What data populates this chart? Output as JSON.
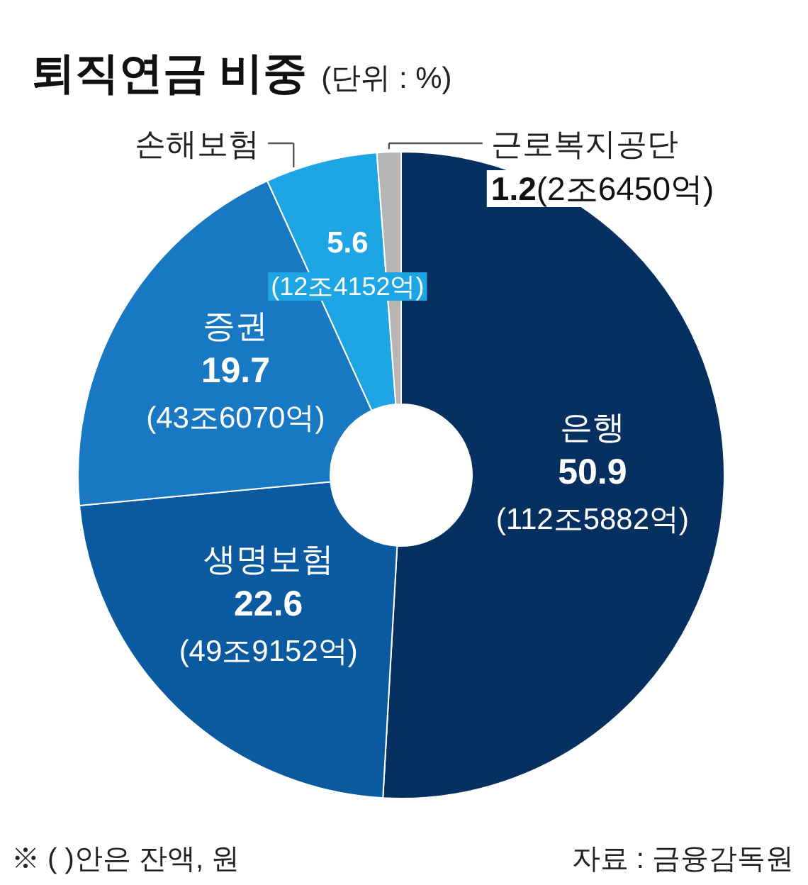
{
  "chart_data": {
    "type": "donut",
    "title": "퇴직연금 비중",
    "subtitle": "(단위 : %)",
    "categories": [
      "은행",
      "생명보험",
      "증권",
      "손해보험",
      "근로복지공단"
    ],
    "values": [
      50.9,
      22.6,
      19.7,
      5.6,
      1.2
    ],
    "colors": [
      "#06305f",
      "#0b5aa0",
      "#1878c2",
      "#1ea6e4",
      "#b5b5b5"
    ],
    "value_labels": [
      "50.9\n(112조5882억)",
      "22.6\n(49조9152억)",
      "19.7\n(43조6070억)",
      "5.6\n(12조4152억)",
      "1.2(2조6450억)"
    ],
    "annotations": [
      "※ (  )안은 잔액, 원",
      "자료 : 금융감독원"
    ]
  }
}
